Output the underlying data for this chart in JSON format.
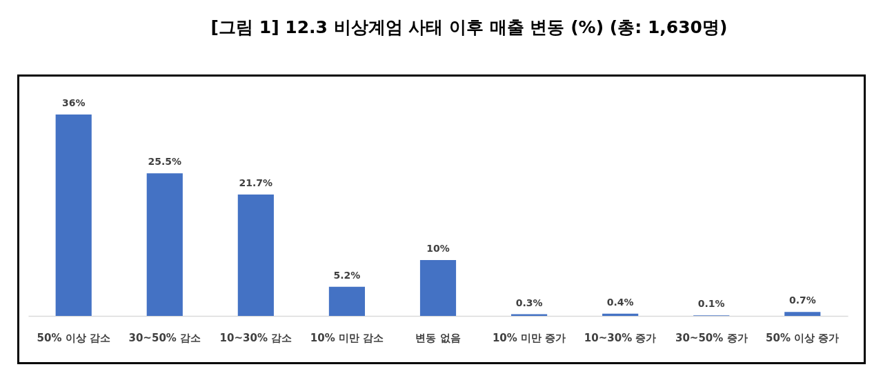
{
  "chart_data": {
    "type": "bar",
    "title": "[그림 1] 12.3 비상계엄 사태 이후 매출 변동 (%) (총: 1,630명)",
    "categories": [
      "50% 이상 감소",
      "30~50% 감소",
      "10~30% 감소",
      "10% 미만 감소",
      "변동 없음",
      "10% 미만 증가",
      "10~30% 증가",
      "30~50% 증가",
      "50% 이상 증가"
    ],
    "values": [
      36,
      25.5,
      21.7,
      5.2,
      10,
      0.3,
      0.4,
      0.1,
      0.7
    ],
    "color": "#4472c4",
    "value_labels": [
      "36%",
      "25.5%",
      "21.7%",
      "5.2%",
      "10%",
      "0.3%",
      "0.4%",
      "0.1%",
      "0.7%"
    ]
  }
}
